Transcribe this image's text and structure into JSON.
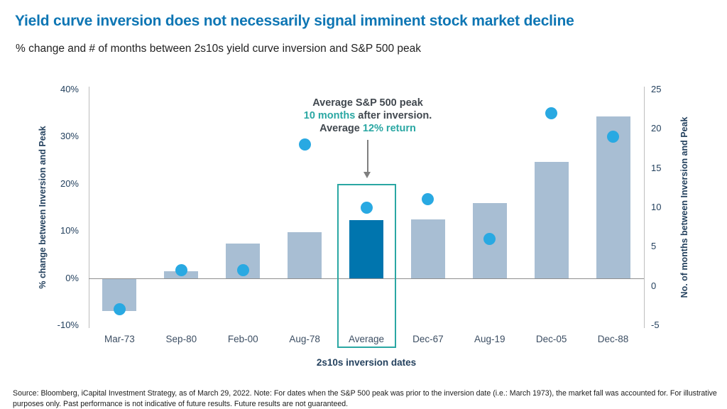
{
  "page": {
    "title": "Yield curve inversion does not necessarily signal imminent stock market decline",
    "subtitle": "% change and # of months between 2s10s yield curve inversion and S&P 500 peak",
    "footer": "Source: Bloomberg, iCapital Investment Strategy, as of March 29, 2022. Note: For dates when the S&P 500 peak was prior to the inversion date (i.e.: March 1973), the market fall was accounted for. For illustrative purposes only. Past performance is not indicative of future results. Future results are not guaranteed."
  },
  "annotation": {
    "line1": "Average S&P 500 peak",
    "line2_highlight": "10 months",
    "line2_rest": " after inversion.",
    "line3_prefix": "Average ",
    "line3_highlight": "12% return"
  },
  "chart_data": {
    "type": "bar",
    "subtype": "combo-bar-scatter",
    "title": "Yield curve inversion does not necessarily signal imminent stock market decline",
    "subtitle": "% change and # of months between 2s10s yield curve inversion and S&P 500 peak",
    "categories": [
      "Mar-73",
      "Sep-80",
      "Feb-00",
      "Aug-78",
      "Average",
      "Dec-67",
      "Aug-19",
      "Dec-05",
      "Dec-88"
    ],
    "series": [
      {
        "name": "% change between Inversion and Peak",
        "type": "bar",
        "axis": "left",
        "values": [
          -7,
          1.4,
          7.3,
          9.7,
          12.3,
          12.4,
          15.9,
          24.6,
          34.3
        ]
      },
      {
        "name": "No. of months between Inversion and Peak",
        "type": "scatter",
        "axis": "right",
        "values": [
          -3,
          2,
          2,
          18,
          10,
          11,
          6,
          22,
          19
        ]
      }
    ],
    "highlight_category": "Average",
    "highlight_index": 4,
    "left_axis": {
      "title": "% change between Inversion and Peak",
      "min": -10,
      "max": 40,
      "ticks": [
        "40%",
        "30%",
        "20%",
        "10%",
        "0%",
        "-10%"
      ],
      "tick_values": [
        40,
        30,
        20,
        10,
        0,
        -10
      ]
    },
    "right_axis": {
      "title": "No. of months between Inversion and Peak",
      "min": -5,
      "max": 25,
      "ticks": [
        "25",
        "20",
        "15",
        "10",
        "5",
        "0",
        "-5"
      ],
      "tick_values": [
        25,
        20,
        15,
        10,
        5,
        0,
        -5
      ]
    },
    "x_axis": {
      "title": "2s10s inversion dates"
    },
    "grid": "off",
    "legend": "none"
  },
  "colors": {
    "title_blue": "#0e76b4",
    "bar_light": "#a8bed3",
    "bar_highlight": "#0075ae",
    "dot_blue": "#29a9e2",
    "teal_accent": "#2aa7a3",
    "axis_text": "#24415e",
    "annotation_text": "#41484f",
    "axis_line": "#bdbdbd",
    "zero_line": "#8f8f8f"
  }
}
